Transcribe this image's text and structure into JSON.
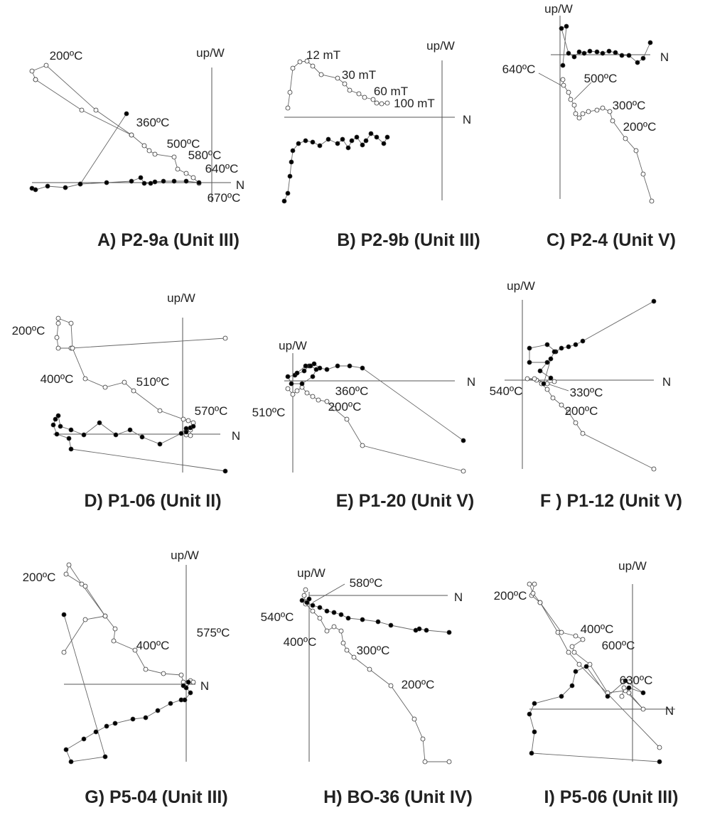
{
  "panels": [
    {
      "caption": "A) P2-9a (Unit III)",
      "up_label": "up/W",
      "n_label": "N",
      "annotations": [
        "200ºC",
        "360ºC",
        "500ºC",
        "580ºC",
        "640ºC",
        "670ºC"
      ]
    },
    {
      "caption": "B) P2-9b (Unit III)",
      "up_label": "up/W",
      "n_label": "N",
      "annotations": [
        "12 mT",
        "30 mT",
        "60 mT",
        "100 mT"
      ]
    },
    {
      "caption": "C) P2-4 (Unit V)",
      "up_label": "up/W",
      "n_label": "N",
      "annotations": [
        "640ºC",
        "500ºC",
        "300ºC",
        "200ºC"
      ]
    },
    {
      "caption": "D) P1-06 (Unit II)",
      "up_label": "up/W",
      "n_label": "N",
      "annotations": [
        "200ºC",
        "400ºC",
        "510ºC",
        "570ºC"
      ]
    },
    {
      "caption": "E) P1-20 (Unit V)",
      "up_label": "up/W",
      "n_label": "N",
      "annotations": [
        "360ºC",
        "200ºC",
        "510ºC"
      ]
    },
    {
      "caption": "F ) P1-12 (Unit V)",
      "up_label": "up/W",
      "n_label": "N",
      "annotations": [
        "540ºC",
        "330ºC",
        "200ºC"
      ]
    },
    {
      "caption": "G) P5-04 (Unit III)",
      "up_label": "up/W",
      "n_label": "N",
      "annotations": [
        "200ºC",
        "400ºC",
        "575ºC"
      ]
    },
    {
      "caption": "H) BO-36 (Unit IV)",
      "up_label": "up/W",
      "n_label": "N",
      "annotations": [
        "580ºC",
        "540ºC",
        "400ºC",
        "300ºC",
        "200ºC"
      ]
    },
    {
      "caption": "I) P5-06 (Unit III)",
      "up_label": "up/W",
      "n_label": "N",
      "annotations": [
        "200ºC",
        "400ºC",
        "600ºC",
        "630ºC"
      ]
    }
  ]
}
